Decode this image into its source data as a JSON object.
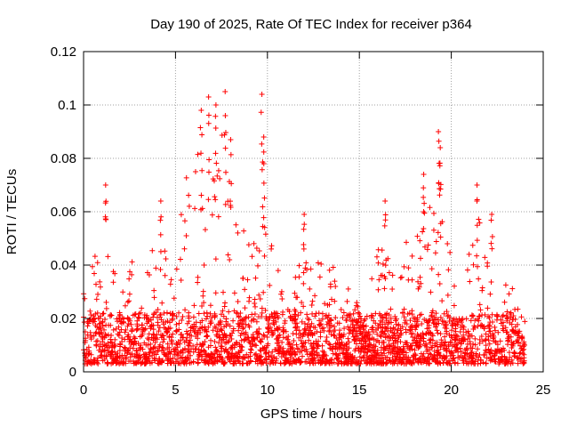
{
  "chart_data": {
    "type": "scatter",
    "title": "Day 190 of 2025, Rate Of TEC Index for receiver p364",
    "xlabel": "GPS time / hours",
    "ylabel": "ROTI / TECUs",
    "xlim": [
      0,
      25
    ],
    "ylim": [
      0,
      0.12
    ],
    "xticks": [
      "0",
      "5",
      "10",
      "15",
      "20",
      "25"
    ],
    "yticks": [
      "0",
      "0.02",
      "0.04",
      "0.06",
      "0.08",
      "0.1",
      "0.12"
    ],
    "xtick_values": [
      0,
      5,
      10,
      15,
      20,
      25
    ],
    "ytick_values": [
      0,
      0.02,
      0.04,
      0.06,
      0.08,
      0.1,
      0.12
    ],
    "grid": true,
    "marker": "+",
    "colors": {
      "series": "#ff0000",
      "grid": "#a0a0a0",
      "axis": "#000000"
    },
    "series": [
      {
        "name": "ROTI",
        "data_range": {
          "x_start": 0.0,
          "x_end": 24.0
        },
        "notable_peaks": [
          {
            "x": 1.2,
            "y": 0.07
          },
          {
            "x": 4.2,
            "y": 0.064
          },
          {
            "x": 6.4,
            "y": 0.098
          },
          {
            "x": 6.8,
            "y": 0.103
          },
          {
            "x": 7.2,
            "y": 0.1
          },
          {
            "x": 7.7,
            "y": 0.105
          },
          {
            "x": 8.0,
            "y": 0.087
          },
          {
            "x": 9.7,
            "y": 0.104
          },
          {
            "x": 9.8,
            "y": 0.088
          },
          {
            "x": 12.0,
            "y": 0.059
          },
          {
            "x": 16.4,
            "y": 0.064
          },
          {
            "x": 18.5,
            "y": 0.074
          },
          {
            "x": 19.3,
            "y": 0.09
          },
          {
            "x": 19.4,
            "y": 0.084
          },
          {
            "x": 21.4,
            "y": 0.07
          },
          {
            "x": 22.2,
            "y": 0.059
          }
        ],
        "envelope": [
          {
            "x": 0.0,
            "y": 0.03
          },
          {
            "x": 0.5,
            "y": 0.045
          },
          {
            "x": 1.0,
            "y": 0.04
          },
          {
            "x": 1.5,
            "y": 0.045
          },
          {
            "x": 2.0,
            "y": 0.035
          },
          {
            "x": 2.5,
            "y": 0.05
          },
          {
            "x": 3.0,
            "y": 0.03
          },
          {
            "x": 3.5,
            "y": 0.04
          },
          {
            "x": 4.0,
            "y": 0.055
          },
          {
            "x": 4.5,
            "y": 0.045
          },
          {
            "x": 5.0,
            "y": 0.05
          },
          {
            "x": 5.5,
            "y": 0.07
          },
          {
            "x": 6.0,
            "y": 0.085
          },
          {
            "x": 6.5,
            "y": 0.095
          },
          {
            "x": 7.0,
            "y": 0.09
          },
          {
            "x": 7.5,
            "y": 0.095
          },
          {
            "x": 8.0,
            "y": 0.08
          },
          {
            "x": 8.5,
            "y": 0.055
          },
          {
            "x": 9.0,
            "y": 0.05
          },
          {
            "x": 9.5,
            "y": 0.065
          },
          {
            "x": 10.0,
            "y": 0.05
          },
          {
            "x": 10.5,
            "y": 0.045
          },
          {
            "x": 11.0,
            "y": 0.04
          },
          {
            "x": 11.5,
            "y": 0.035
          },
          {
            "x": 12.0,
            "y": 0.05
          },
          {
            "x": 12.5,
            "y": 0.04
          },
          {
            "x": 13.0,
            "y": 0.05
          },
          {
            "x": 13.5,
            "y": 0.045
          },
          {
            "x": 14.0,
            "y": 0.04
          },
          {
            "x": 14.5,
            "y": 0.03
          },
          {
            "x": 15.0,
            "y": 0.025
          },
          {
            "x": 15.5,
            "y": 0.03
          },
          {
            "x": 16.0,
            "y": 0.05
          },
          {
            "x": 16.5,
            "y": 0.055
          },
          {
            "x": 17.0,
            "y": 0.045
          },
          {
            "x": 17.5,
            "y": 0.055
          },
          {
            "x": 18.0,
            "y": 0.045
          },
          {
            "x": 18.5,
            "y": 0.065
          },
          {
            "x": 19.0,
            "y": 0.06
          },
          {
            "x": 19.5,
            "y": 0.075
          },
          {
            "x": 20.0,
            "y": 0.045
          },
          {
            "x": 20.5,
            "y": 0.04
          },
          {
            "x": 21.0,
            "y": 0.045
          },
          {
            "x": 21.5,
            "y": 0.06
          },
          {
            "x": 22.0,
            "y": 0.05
          },
          {
            "x": 22.5,
            "y": 0.04
          },
          {
            "x": 23.0,
            "y": 0.035
          },
          {
            "x": 23.5,
            "y": 0.035
          },
          {
            "x": 24.0,
            "y": 0.03
          }
        ],
        "baseline": {
          "min": 0.003,
          "typical": 0.012
        }
      }
    ]
  }
}
